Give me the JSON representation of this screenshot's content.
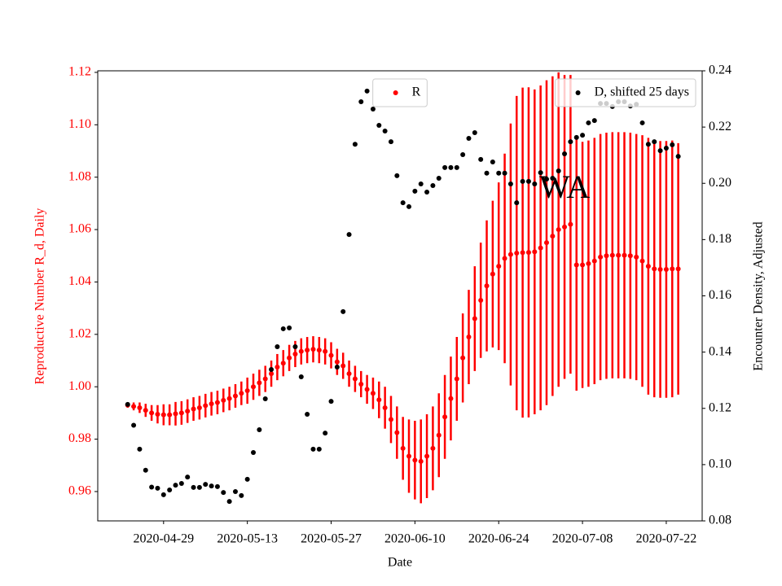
{
  "chart_data": {
    "type": "errorbar-scatter",
    "xlabel": "Date",
    "ylabel": "Reproductive Number R_d, Daily",
    "y2label": "Encounter Density, Adjusted",
    "annotation": "WA",
    "ylabel_color": "#ff0000",
    "x": [
      "2020-04-23",
      "2020-04-24",
      "2020-04-25",
      "2020-04-26",
      "2020-04-27",
      "2020-04-28",
      "2020-04-29",
      "2020-04-30",
      "2020-05-01",
      "2020-05-02",
      "2020-05-03",
      "2020-05-04",
      "2020-05-05",
      "2020-05-06",
      "2020-05-07",
      "2020-05-08",
      "2020-05-09",
      "2020-05-10",
      "2020-05-11",
      "2020-05-12",
      "2020-05-13",
      "2020-05-14",
      "2020-05-15",
      "2020-05-16",
      "2020-05-17",
      "2020-05-18",
      "2020-05-19",
      "2020-05-20",
      "2020-05-21",
      "2020-05-22",
      "2020-05-23",
      "2020-05-24",
      "2020-05-25",
      "2020-05-26",
      "2020-05-27",
      "2020-05-28",
      "2020-05-29",
      "2020-05-30",
      "2020-05-31",
      "2020-06-01",
      "2020-06-02",
      "2020-06-03",
      "2020-06-04",
      "2020-06-05",
      "2020-06-06",
      "2020-06-07",
      "2020-06-08",
      "2020-06-09",
      "2020-06-10",
      "2020-06-11",
      "2020-06-12",
      "2020-06-13",
      "2020-06-14",
      "2020-06-15",
      "2020-06-16",
      "2020-06-17",
      "2020-06-18",
      "2020-06-19",
      "2020-06-20",
      "2020-06-21",
      "2020-06-22",
      "2020-06-23",
      "2020-06-24",
      "2020-06-25",
      "2020-06-26",
      "2020-06-27",
      "2020-06-28",
      "2020-06-29",
      "2020-06-30",
      "2020-07-01",
      "2020-07-02",
      "2020-07-03",
      "2020-07-04",
      "2020-07-05",
      "2020-07-06",
      "2020-07-07",
      "2020-07-08",
      "2020-07-09",
      "2020-07-10",
      "2020-07-11",
      "2020-07-12",
      "2020-07-13",
      "2020-07-14",
      "2020-07-15",
      "2020-07-16",
      "2020-07-17",
      "2020-07-18",
      "2020-07-19",
      "2020-07-20",
      "2020-07-21",
      "2020-07-22",
      "2020-07-23",
      "2020-07-24"
    ],
    "xlim": [
      "2020-04-18",
      "2020-07-28"
    ],
    "xticks": [
      "2020-04-29",
      "2020-05-13",
      "2020-05-27",
      "2020-06-10",
      "2020-06-24",
      "2020-07-08",
      "2020-07-22"
    ],
    "ylim": [
      0.9488,
      1.1206
    ],
    "yticks": [
      0.96,
      0.98,
      {
        "value": 1,
        "label": "1.00"
      },
      1.02,
      1.04,
      1.06,
      1.08,
      {
        "value": 1.1,
        "label": "1.10"
      },
      1.12
    ],
    "y2lim": [
      0.08,
      0.24
    ],
    "y2ticks": [
      0.08,
      {
        "value": 0.1,
        "label": "0.10"
      },
      0.12,
      0.14,
      0.16,
      0.18,
      {
        "value": 0.2,
        "label": "0.20"
      },
      0.22,
      0.24
    ],
    "series": [
      {
        "name": "R",
        "color": "#ff0000",
        "axis": "y",
        "legend": "upper center",
        "values": [
          0.993,
          0.9925,
          0.992,
          0.991,
          0.99,
          0.9895,
          0.9893,
          0.9893,
          0.9897,
          0.99,
          0.9907,
          0.9915,
          0.992,
          0.9928,
          0.9935,
          0.994,
          0.9948,
          0.9955,
          0.9965,
          0.9975,
          0.9985,
          1.0,
          1.0015,
          1.003,
          1.005,
          1.0075,
          1.009,
          1.011,
          1.0125,
          1.0135,
          1.014,
          1.0143,
          1.014,
          1.0135,
          1.012,
          1.0095,
          1.008,
          1.005,
          1.003,
          1.001,
          0.999,
          0.9975,
          0.995,
          0.992,
          0.9875,
          0.9825,
          0.9765,
          0.9735,
          0.972,
          0.9715,
          0.9735,
          0.9765,
          0.9815,
          0.9885,
          0.9955,
          1.003,
          1.011,
          1.019,
          1.026,
          1.033,
          1.0385,
          1.043,
          1.046,
          1.049,
          1.0505,
          1.051,
          1.0512,
          1.0513,
          1.0515,
          1.053,
          1.055,
          1.0575,
          1.06,
          1.061,
          1.062,
          1.0465,
          1.0465,
          1.047,
          1.048,
          1.0495,
          1.05,
          1.0502,
          1.0502,
          1.0502,
          1.05,
          1.0495,
          1.048,
          1.046,
          1.045,
          1.0448,
          1.0448,
          1.045,
          1.045
        ],
        "errors": [
          0.001,
          0.0015,
          0.002,
          0.0025,
          0.003,
          0.0035,
          0.004,
          0.004,
          0.0045,
          0.0045,
          0.0045,
          0.0045,
          0.0045,
          0.0045,
          0.0045,
          0.0045,
          0.0045,
          0.0045,
          0.0045,
          0.0045,
          0.005,
          0.005,
          0.005,
          0.005,
          0.005,
          0.005,
          0.005,
          0.005,
          0.005,
          0.005,
          0.005,
          0.005,
          0.005,
          0.005,
          0.005,
          0.005,
          0.005,
          0.005,
          0.005,
          0.005,
          0.0055,
          0.006,
          0.007,
          0.008,
          0.009,
          0.01,
          0.012,
          0.014,
          0.015,
          0.016,
          0.016,
          0.016,
          0.016,
          0.016,
          0.016,
          0.016,
          0.017,
          0.018,
          0.02,
          0.022,
          0.025,
          0.028,
          0.032,
          0.04,
          0.05,
          0.06,
          0.063,
          0.063,
          0.062,
          0.062,
          0.062,
          0.061,
          0.06,
          0.058,
          0.057,
          0.048,
          0.047,
          0.047,
          0.047,
          0.047,
          0.047,
          0.047,
          0.047,
          0.047,
          0.047,
          0.047,
          0.048,
          0.049,
          0.049,
          0.049,
          0.049,
          0.049,
          0.048
        ]
      },
      {
        "name": "D, shifted 25 days",
        "color": "#000000",
        "axis": "y2",
        "legend": "upper right",
        "values": [
          0.1214,
          0.114,
          0.1055,
          0.098,
          0.092,
          0.0916,
          0.0893,
          0.091,
          0.0927,
          0.0933,
          0.0956,
          0.0919,
          0.0919,
          0.093,
          0.0924,
          0.0922,
          0.0901,
          0.0869,
          0.0904,
          0.089,
          0.0948,
          0.1043,
          0.1124,
          0.1234,
          0.1338,
          0.1419,
          0.1483,
          0.1486,
          0.1419,
          0.1312,
          0.1179,
          0.1055,
          0.1055,
          0.1112,
          0.1225,
          0.1347,
          0.1544,
          0.1818,
          0.2139,
          0.229,
          0.2328,
          0.2264,
          0.2206,
          0.2186,
          0.2148,
          0.2027,
          0.1931,
          0.1917,
          0.1972,
          0.1998,
          0.1969,
          0.1992,
          0.2018,
          0.2056,
          0.2056,
          0.2056,
          0.2102,
          0.216,
          0.218,
          0.2085,
          0.2036,
          0.2076,
          0.2036,
          0.2036,
          0.1998,
          0.1931,
          0.2007,
          0.2007,
          0.1998,
          0.2038,
          0.2015,
          0.2018,
          0.2044,
          0.2105,
          0.2148,
          0.2163,
          0.2171,
          0.2215,
          0.2223,
          0.2284,
          0.2284,
          0.2273,
          0.229,
          0.229,
          0.2275,
          0.2281,
          0.2215,
          0.2139,
          0.2148,
          0.2116,
          0.2125,
          0.2137,
          0.2096
        ]
      }
    ]
  }
}
